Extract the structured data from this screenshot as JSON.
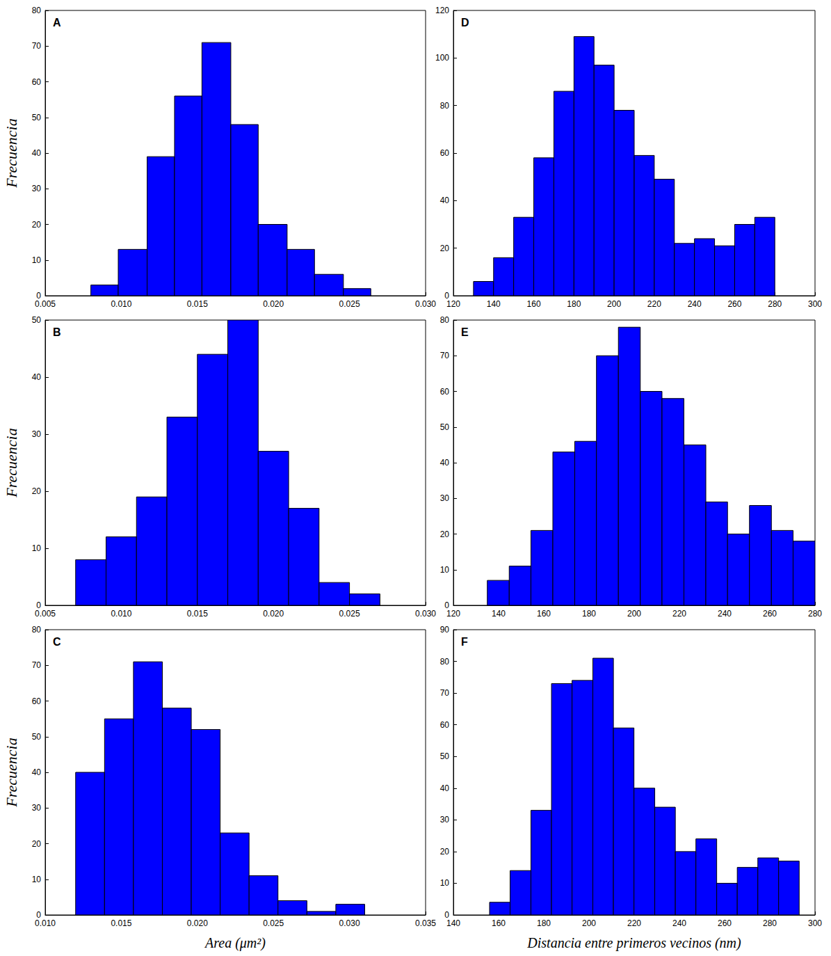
{
  "chart_data": [
    {
      "type": "histogram",
      "title": "A",
      "ylabel": "Frecuencia",
      "color": "#0000ff",
      "grid": false,
      "bins": [
        0.008,
        0.0098,
        0.0117,
        0.0135,
        0.0153,
        0.0172,
        0.019,
        0.0209,
        0.0227,
        0.0246,
        0.0264
      ],
      "values": [
        3,
        13,
        39,
        56,
        71,
        48,
        20,
        13,
        6,
        2
      ],
      "xlim": [
        0.005,
        0.03
      ],
      "xticks": [
        0.005,
        {
          "value": 0.01,
          "label": "0.010"
        },
        0.015,
        {
          "value": 0.02,
          "label": "0.020"
        },
        0.025,
        {
          "value": 0.03,
          "label": "0.030"
        }
      ],
      "ylim": [
        0,
        80
      ],
      "yticks": [
        0,
        10,
        20,
        30,
        40,
        50,
        60,
        70,
        80
      ]
    },
    {
      "type": "histogram",
      "title": "D",
      "color": "#0000ff",
      "grid": false,
      "bins": [
        130,
        140,
        150,
        160,
        170,
        180,
        190,
        200,
        210,
        220,
        230,
        240,
        250,
        260,
        270,
        280
      ],
      "values": [
        6,
        16,
        33,
        58,
        86,
        109,
        97,
        78,
        59,
        49,
        22,
        24,
        21,
        30,
        33
      ],
      "xlim": [
        120,
        300
      ],
      "xticks": [
        120,
        140,
        160,
        180,
        200,
        220,
        240,
        260,
        280,
        300
      ],
      "ylim": [
        0,
        120
      ],
      "yticks": [
        0,
        20,
        40,
        60,
        80,
        100,
        120
      ]
    },
    {
      "type": "histogram",
      "title": "B",
      "ylabel": "Frecuencia",
      "color": "#0000ff",
      "grid": false,
      "bins": [
        0.007,
        0.009,
        0.011,
        0.013,
        0.015,
        0.017,
        0.019,
        0.021,
        0.023,
        0.025,
        0.027
      ],
      "values": [
        8,
        12,
        19,
        33,
        44,
        50,
        27,
        17,
        4,
        2
      ],
      "xlim": [
        0.005,
        0.03
      ],
      "xticks": [
        0.005,
        {
          "value": 0.01,
          "label": "0.010"
        },
        0.015,
        {
          "value": 0.02,
          "label": "0.020"
        },
        0.025,
        {
          "value": 0.03,
          "label": "0.030"
        }
      ],
      "ylim": [
        0,
        50
      ],
      "yticks": [
        0,
        10,
        20,
        30,
        40,
        50
      ]
    },
    {
      "type": "histogram",
      "title": "E",
      "color": "#0000ff",
      "grid": false,
      "bins": [
        135,
        144.7,
        154.3,
        164,
        173.7,
        183.3,
        193,
        202.7,
        212.3,
        222,
        231.7,
        241.3,
        251,
        260.7,
        270.3,
        280
      ],
      "values": [
        7,
        11,
        21,
        43,
        46,
        70,
        78,
        60,
        58,
        45,
        29,
        20,
        28,
        21,
        18
      ],
      "xlim": [
        120,
        280
      ],
      "xticks": [
        120,
        140,
        160,
        180,
        200,
        220,
        240,
        260,
        280
      ],
      "ylim": [
        0,
        80
      ],
      "yticks": [
        0,
        10,
        20,
        30,
        40,
        50,
        60,
        70,
        80
      ]
    },
    {
      "type": "histogram",
      "title": "C",
      "ylabel": "Frecuencia",
      "xlabel": "Area (μm²)",
      "color": "#0000ff",
      "grid": false,
      "bins": [
        0.012,
        0.0139,
        0.0158,
        0.0177,
        0.0196,
        0.0215,
        0.0234,
        0.0253,
        0.0272,
        0.0291,
        0.031
      ],
      "values": [
        40,
        55,
        71,
        58,
        52,
        23,
        11,
        4,
        1,
        3
      ],
      "xlim": [
        0.01,
        0.035
      ],
      "xticks": [
        {
          "value": 0.01,
          "label": "0.010"
        },
        0.015,
        {
          "value": 0.02,
          "label": "0.020"
        },
        0.025,
        {
          "value": 0.03,
          "label": "0.030"
        },
        0.035
      ],
      "ylim": [
        0,
        80
      ],
      "yticks": [
        0,
        10,
        20,
        30,
        40,
        50,
        60,
        70,
        80
      ]
    },
    {
      "type": "histogram",
      "title": "F",
      "xlabel": "Distancia entre primeros vecinos (nm)",
      "color": "#0000ff",
      "grid": false,
      "bins": [
        156,
        165.1,
        174.3,
        183.4,
        192.5,
        201.7,
        210.8,
        219.9,
        229.1,
        238.2,
        247.3,
        256.5,
        265.6,
        274.7,
        283.9,
        293
      ],
      "values": [
        4,
        14,
        33,
        73,
        74,
        81,
        59,
        40,
        34,
        20,
        24,
        10,
        15,
        18,
        17
      ],
      "xlim": [
        140,
        300
      ],
      "xticks": [
        140,
        160,
        180,
        200,
        220,
        240,
        260,
        280,
        300
      ],
      "ylim": [
        0,
        90
      ],
      "yticks": [
        0,
        10,
        20,
        30,
        40,
        50,
        60,
        70,
        80,
        90
      ]
    }
  ]
}
